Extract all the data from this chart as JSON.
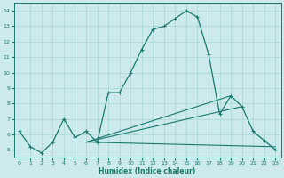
{
  "xlabel": "Humidex (Indice chaleur)",
  "ylabel": "",
  "xlim": [
    -0.5,
    23.5
  ],
  "ylim": [
    4.5,
    14.5
  ],
  "xticks": [
    0,
    1,
    2,
    3,
    4,
    5,
    6,
    7,
    8,
    9,
    10,
    11,
    12,
    13,
    14,
    15,
    16,
    17,
    18,
    19,
    20,
    21,
    22,
    23
  ],
  "yticks": [
    5,
    6,
    7,
    8,
    9,
    10,
    11,
    12,
    13,
    14
  ],
  "bg_color": "#cce9eb",
  "grid_color": "#a8d5d8",
  "line_color": "#1a7a6e",
  "curves": {
    "line1": {
      "x": [
        0,
        1,
        2,
        3,
        4,
        5,
        6,
        7,
        8,
        9,
        10,
        11,
        12,
        13,
        14,
        15,
        16,
        17,
        18,
        19,
        20,
        21,
        22,
        23
      ],
      "y": [
        6.2,
        5.2,
        4.8,
        5.5,
        7.0,
        5.8,
        6.2,
        5.5,
        8.7,
        8.7,
        10.0,
        11.5,
        12.8,
        13.0,
        13.5,
        14.0,
        13.6,
        11.2,
        7.3,
        8.5,
        7.8,
        6.2,
        5.6,
        5.0
      ]
    },
    "line2_flat": {
      "x": [
        6,
        23
      ],
      "y": [
        5.5,
        5.2
      ]
    },
    "line3_mid": {
      "x": [
        6,
        19
      ],
      "y": [
        5.5,
        8.5
      ]
    },
    "line4_top": {
      "x": [
        6,
        20
      ],
      "y": [
        5.5,
        7.8
      ]
    }
  }
}
